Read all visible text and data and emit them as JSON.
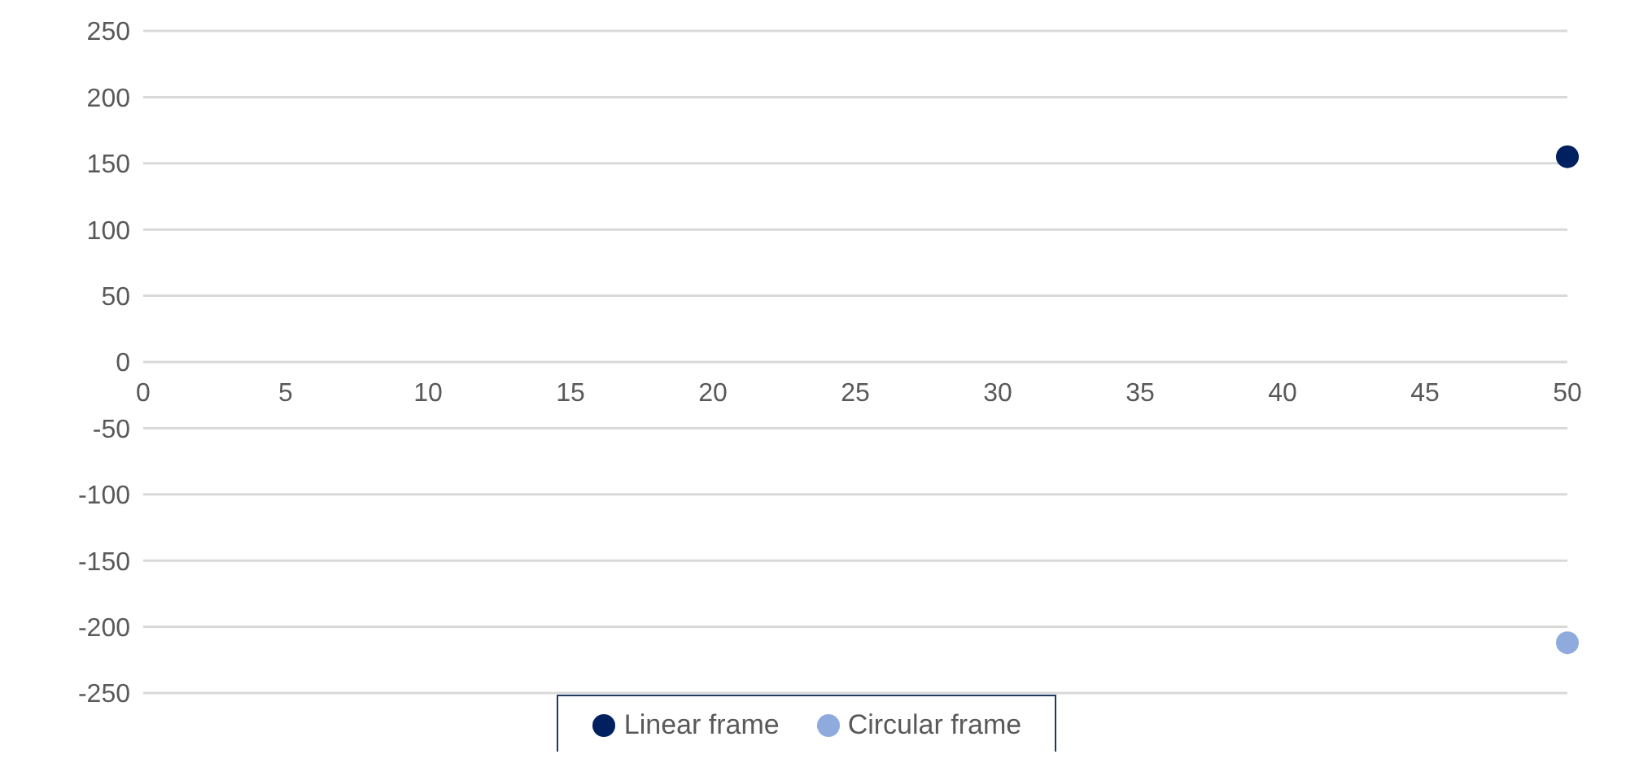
{
  "chart_data": {
    "type": "scatter",
    "xlim": [
      0,
      50
    ],
    "xticks": [
      0,
      5,
      10,
      15,
      20,
      25,
      30,
      35,
      40,
      45,
      50
    ],
    "ylim": [
      -250,
      250
    ],
    "yticks": [
      -250,
      -200,
      -150,
      -100,
      -50,
      0,
      50,
      100,
      150,
      200,
      250
    ],
    "grid": "y",
    "legend": "bottom",
    "marker": "circle",
    "series": [
      {
        "name": "Linear frame",
        "color": "#002060",
        "x": [
          50
        ],
        "values": [
          155
        ]
      },
      {
        "name": "Circular frame",
        "color": "#8faadc",
        "x": [
          50
        ],
        "values": [
          -212
        ]
      }
    ]
  }
}
